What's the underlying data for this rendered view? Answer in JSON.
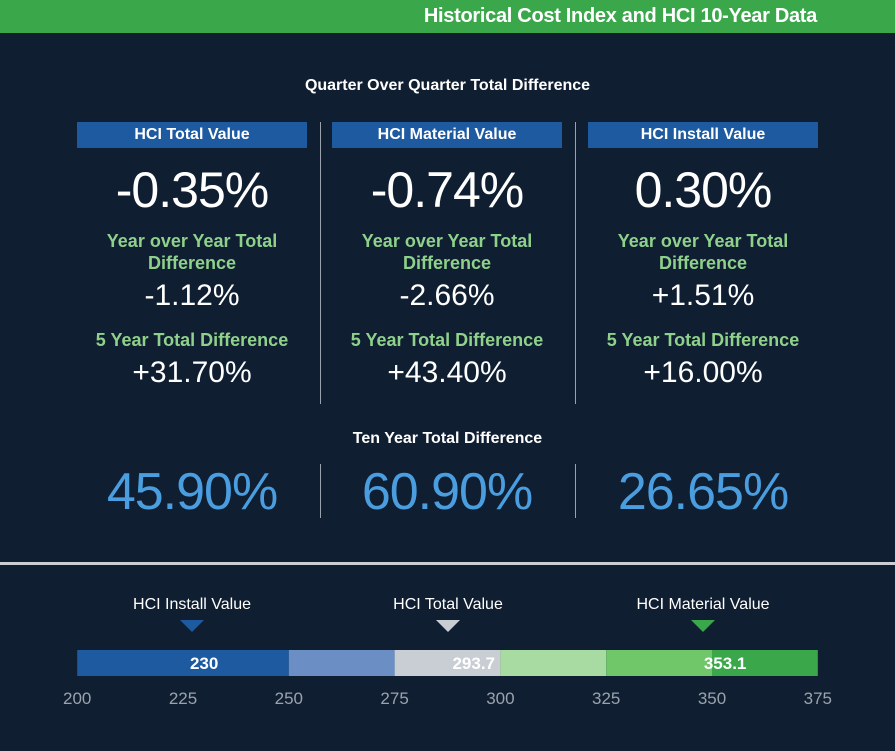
{
  "header": {
    "title": "Historical Cost Index and HCI 10-Year Data"
  },
  "summary": {
    "qoq_title": "Quarter Over Quarter Total Difference",
    "yoy_label": "Year over Year Total Difference",
    "five_year_label": "5 Year Total Difference",
    "ten_year_title": "Ten Year Total Difference",
    "columns": [
      {
        "name": "HCI Total Value",
        "qoq": "-0.35%",
        "yoy": "-1.12%",
        "five_year": "+31.70%",
        "ten_year": "45.90%"
      },
      {
        "name": "HCI Material Value",
        "qoq": "-0.74%",
        "yoy": "-2.66%",
        "five_year": "+43.40%",
        "ten_year": "60.90%"
      },
      {
        "name": "HCI Install Value",
        "qoq": "0.30%",
        "yoy": "+1.51%",
        "five_year": "+16.00%",
        "ten_year": "26.65%"
      }
    ]
  },
  "colors": {
    "background": "#0f1e31",
    "banner": "#3aa84a",
    "header_box": "#1d5aa0",
    "green_text": "#8fd18b",
    "ten_year_text": "#4a9ee0",
    "install": "#1d5aa0",
    "total": "#c9ced4",
    "material": "#3aa84a"
  },
  "chart_data": {
    "type": "bar",
    "title": "",
    "xlim": [
      200,
      375
    ],
    "ticks": [
      200,
      225,
      250,
      275,
      300,
      325,
      350,
      375
    ],
    "segments": [
      {
        "from": 200,
        "to": 250,
        "color": "#1d5aa0"
      },
      {
        "from": 250,
        "to": 275,
        "color": "#6b8fc4"
      },
      {
        "from": 275,
        "to": 300,
        "color": "#c9ced4"
      },
      {
        "from": 300,
        "to": 325,
        "color": "#a8dba1"
      },
      {
        "from": 325,
        "to": 350,
        "color": "#6fc76a"
      },
      {
        "from": 350,
        "to": 375,
        "color": "#3aa84a"
      }
    ],
    "markers": [
      {
        "name": "HCI Install Value",
        "value": 230,
        "label": "230",
        "color": "#1d5aa0"
      },
      {
        "name": "HCI Total Value",
        "value": 293.7,
        "label": "293.7",
        "color": "#c9ced4"
      },
      {
        "name": "HCI Material Value",
        "value": 353.1,
        "label": "353.1",
        "color": "#3aa84a"
      }
    ]
  }
}
